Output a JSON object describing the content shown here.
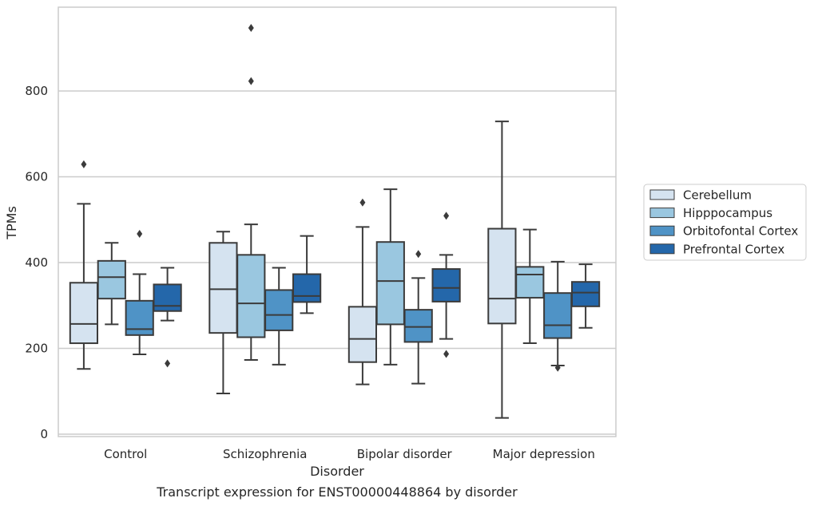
{
  "chart_data": {
    "type": "box",
    "xlabel": "Disorder",
    "ylabel": "TPMs",
    "caption": "Transcript expression for ENST00000448864 by disorder",
    "ylim": [
      -5,
      1000
    ],
    "y_ticks": [
      0,
      200,
      400,
      600,
      800
    ],
    "grid": "horizontal",
    "legend_position": "right",
    "categories": [
      "Control",
      "Schizophrenia",
      "Bipolar disorder",
      "Major depression"
    ],
    "series": [
      {
        "name": "Cerebellum",
        "color": "#d5e3f0",
        "boxes": [
          {
            "whislo": 152,
            "q1": 212,
            "med": 257,
            "q3": 353,
            "whishi": 537,
            "fliers": [
              629
            ]
          },
          {
            "whislo": 95,
            "q1": 236,
            "med": 338,
            "q3": 446,
            "whishi": 472,
            "fliers": []
          },
          {
            "whislo": 116,
            "q1": 168,
            "med": 222,
            "q3": 297,
            "whishi": 483,
            "fliers": [
              540
            ]
          },
          {
            "whislo": 38,
            "q1": 258,
            "med": 316,
            "q3": 479,
            "whishi": 729,
            "fliers": []
          }
        ]
      },
      {
        "name": "Hipppocampus",
        "color": "#9ac7e0",
        "boxes": [
          {
            "whislo": 256,
            "q1": 316,
            "med": 366,
            "q3": 404,
            "whishi": 446,
            "fliers": []
          },
          {
            "whislo": 173,
            "q1": 226,
            "med": 305,
            "q3": 418,
            "whishi": 489,
            "fliers": [
              823,
              947
            ]
          },
          {
            "whislo": 162,
            "q1": 256,
            "med": 357,
            "q3": 448,
            "whishi": 571,
            "fliers": []
          },
          {
            "whislo": 212,
            "q1": 318,
            "med": 372,
            "q3": 390,
            "whishi": 477,
            "fliers": []
          }
        ]
      },
      {
        "name": "Orbitofontal Cortex",
        "color": "#4f93c6",
        "boxes": [
          {
            "whislo": 186,
            "q1": 231,
            "med": 245,
            "q3": 311,
            "whishi": 373,
            "fliers": [
              467
            ]
          },
          {
            "whislo": 162,
            "q1": 242,
            "med": 278,
            "q3": 336,
            "whishi": 388,
            "fliers": []
          },
          {
            "whislo": 118,
            "q1": 215,
            "med": 250,
            "q3": 290,
            "whishi": 364,
            "fliers": [
              420
            ]
          },
          {
            "whislo": 160,
            "q1": 224,
            "med": 254,
            "q3": 329,
            "whishi": 402,
            "fliers": [
              155
            ]
          }
        ]
      },
      {
        "name": "Prefrontal Cortex",
        "color": "#2467aa",
        "boxes": [
          {
            "whislo": 265,
            "q1": 287,
            "med": 299,
            "q3": 349,
            "whishi": 388,
            "fliers": [
              165
            ]
          },
          {
            "whislo": 282,
            "q1": 308,
            "med": 322,
            "q3": 373,
            "whishi": 462,
            "fliers": []
          },
          {
            "whislo": 222,
            "q1": 309,
            "med": 341,
            "q3": 385,
            "whishi": 418,
            "fliers": [
              509,
              187
            ]
          },
          {
            "whislo": 248,
            "q1": 298,
            "med": 330,
            "q3": 355,
            "whishi": 396,
            "fliers": []
          }
        ]
      }
    ]
  }
}
